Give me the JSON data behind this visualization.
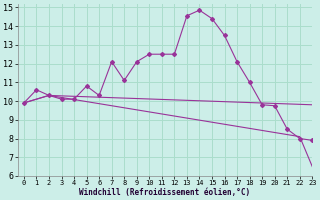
{
  "xlabel": "Windchill (Refroidissement éolien,°C)",
  "bg_color": "#cceee8",
  "line_color": "#993399",
  "grid_color": "#aaddcc",
  "line1_x": [
    0,
    1,
    2,
    3,
    4,
    5,
    6,
    7,
    8,
    9,
    10,
    11,
    12,
    13,
    14,
    15,
    16,
    17,
    18,
    19,
    20,
    21,
    22,
    23
  ],
  "line1_y": [
    9.9,
    10.6,
    10.3,
    10.1,
    10.1,
    10.8,
    10.3,
    12.1,
    11.1,
    12.1,
    12.5,
    12.5,
    12.5,
    14.55,
    14.85,
    14.4,
    13.5,
    12.1,
    11.0,
    9.8,
    9.75,
    8.5,
    8.0,
    7.9
  ],
  "line2_x": [
    0,
    2,
    23
  ],
  "line2_y": [
    9.9,
    10.3,
    9.8
  ],
  "line3_x": [
    0,
    2,
    22,
    23
  ],
  "line3_y": [
    9.9,
    10.3,
    8.1,
    6.5
  ],
  "xlim": [
    -0.5,
    23
  ],
  "ylim": [
    6,
    15.2
  ],
  "xticks": [
    0,
    1,
    2,
    3,
    4,
    5,
    6,
    7,
    8,
    9,
    10,
    11,
    12,
    13,
    14,
    15,
    16,
    17,
    18,
    19,
    20,
    21,
    22,
    23
  ],
  "yticks": [
    6,
    7,
    8,
    9,
    10,
    11,
    12,
    13,
    14,
    15
  ]
}
